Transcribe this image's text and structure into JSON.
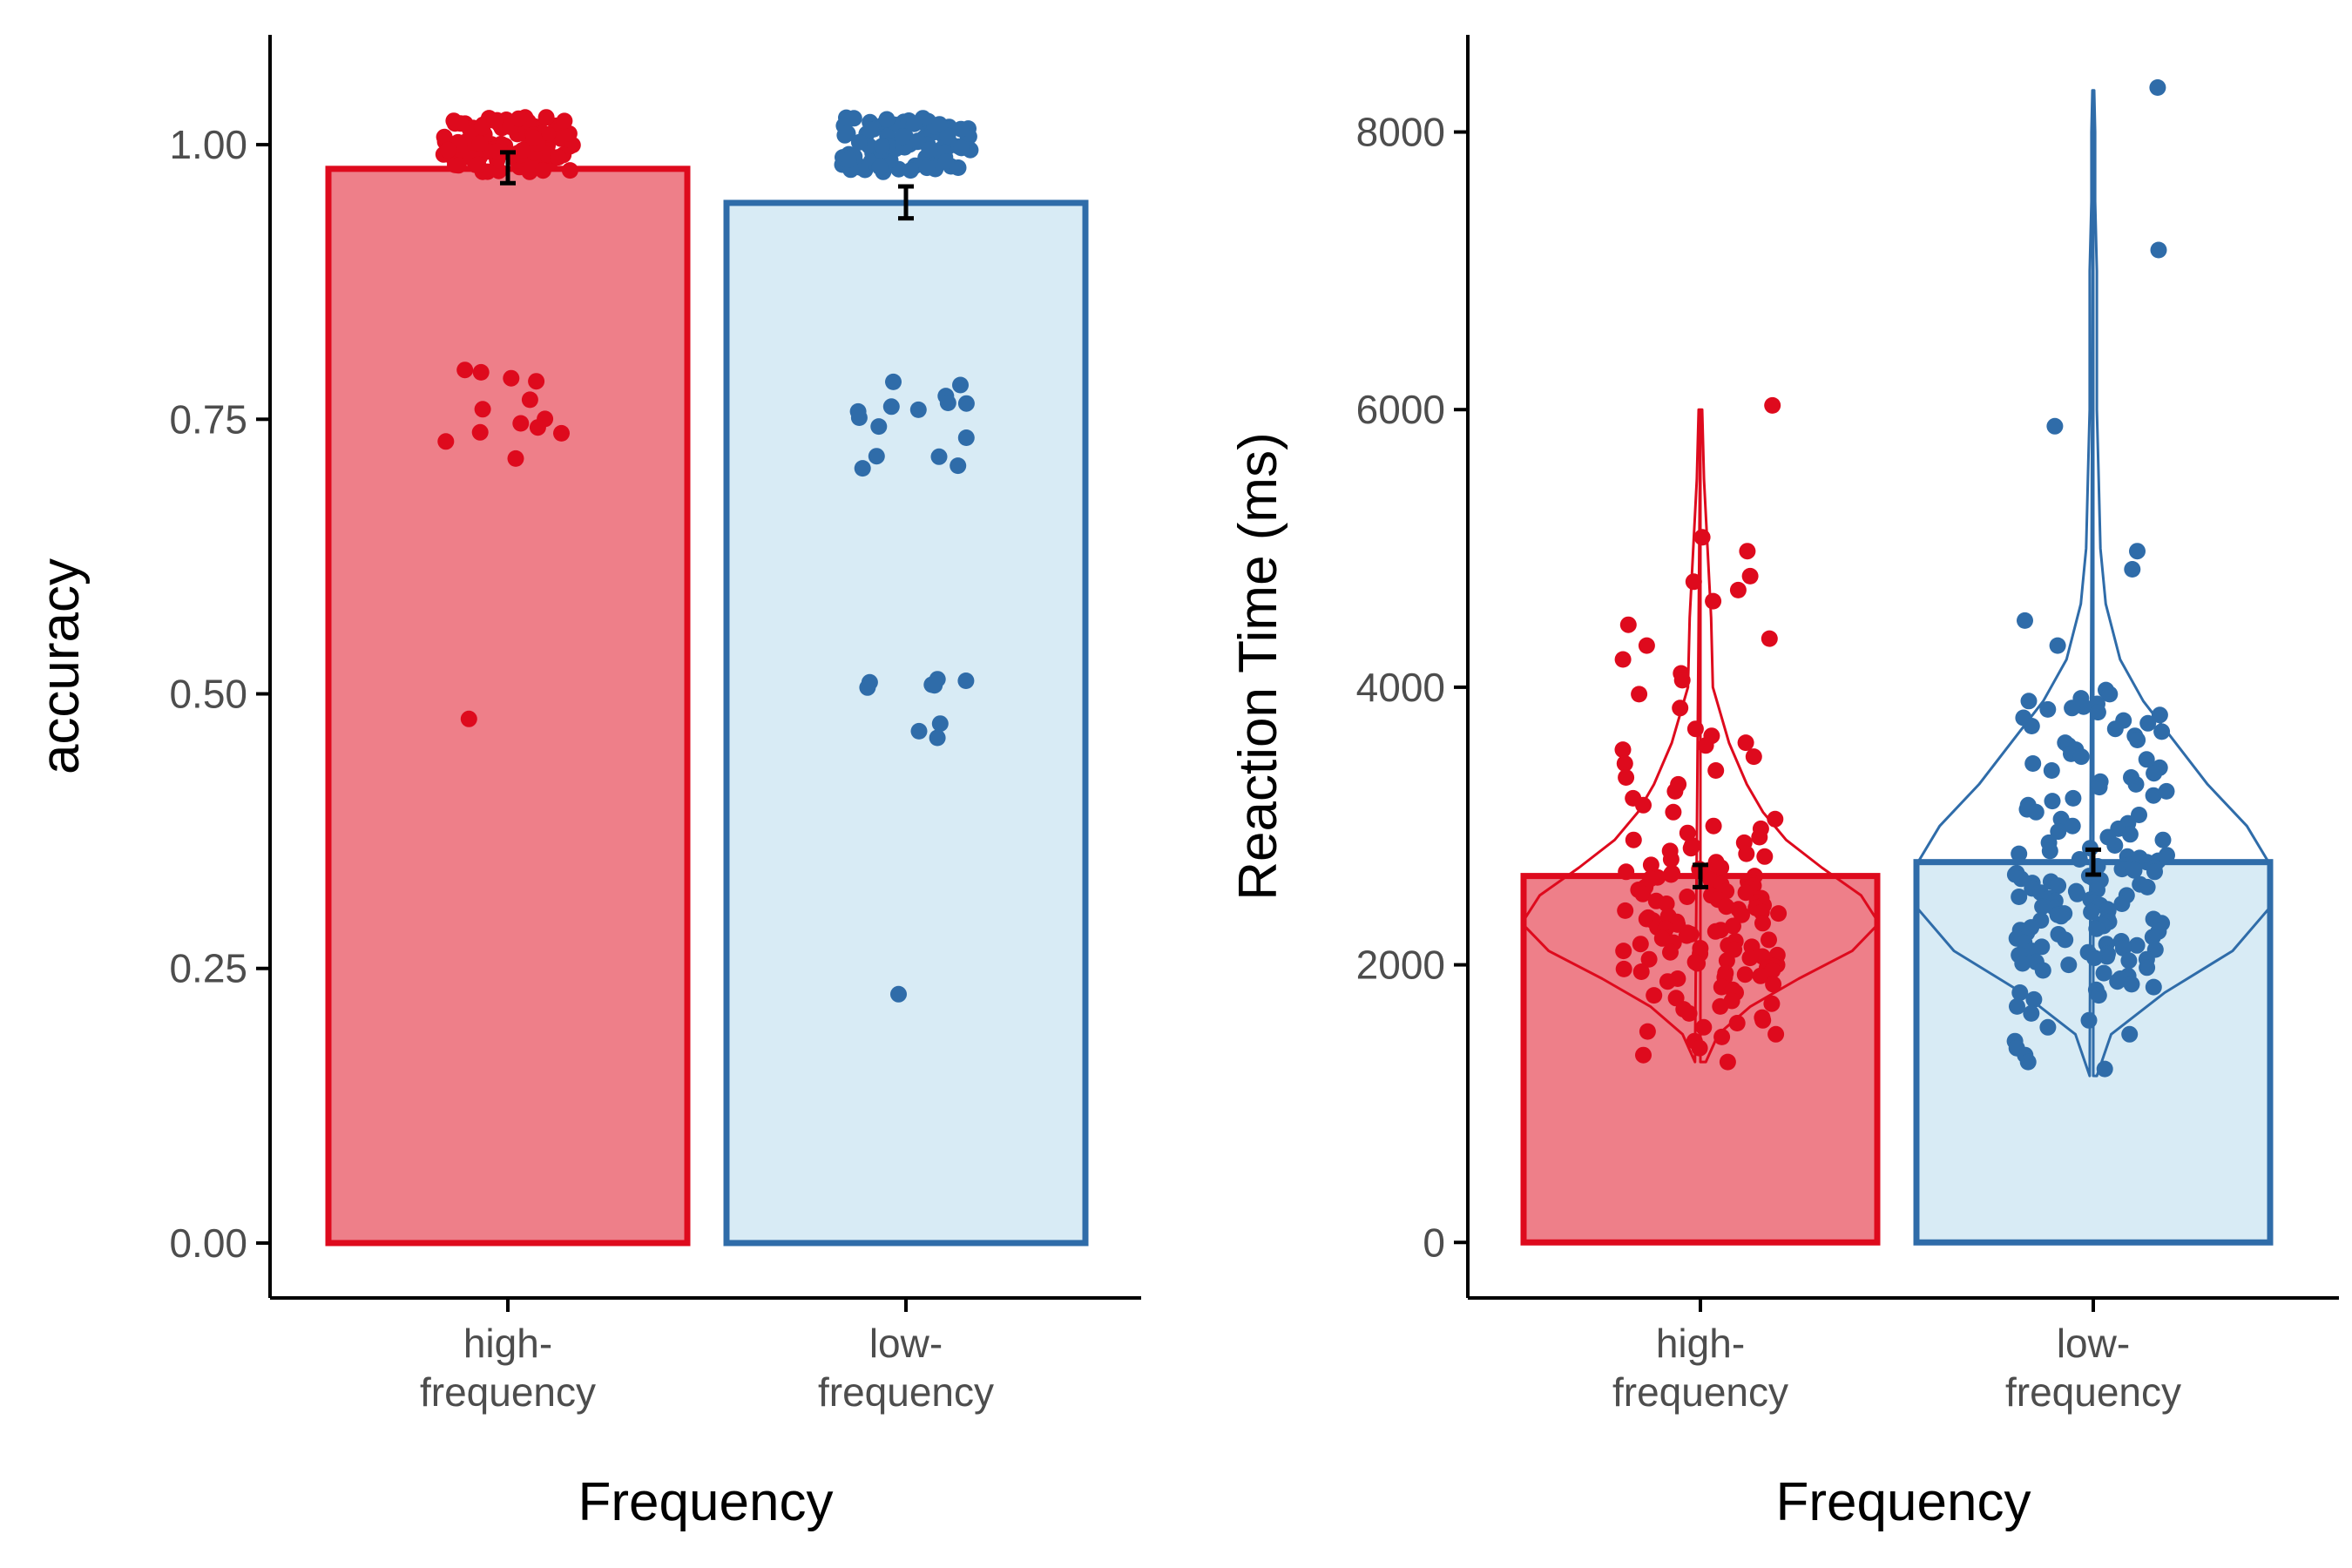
{
  "chart_data": [
    {
      "type": "bar",
      "overlay": "jittered points with standard-error bars",
      "categories": [
        "high-\nfrequency",
        "low-\nfrequency"
      ],
      "xlabel": "Frequency",
      "ylabel": "accuracy",
      "ylim": [
        -0.05,
        1.1
      ],
      "yticks": [
        "0.00",
        "0.25",
        "0.50",
        "0.75",
        "1.00"
      ],
      "ytick_values": [
        0,
        0.25,
        0.5,
        0.75,
        1.0
      ],
      "values": [
        0.978,
        0.947
      ],
      "error": [
        [
          0.965,
          0.993
        ],
        [
          0.933,
          0.962
        ]
      ],
      "colors": {
        "fill": [
          "#ee7f89",
          "#d8ebf5"
        ],
        "stroke": [
          "#de0a1d",
          "#2f6ca9"
        ]
      },
      "points": [
        {
          "category": 0,
          "y": [
            1.0,
            1.0,
            1.0,
            1.0,
            1.0,
            1.0,
            1.0,
            1.0,
            1.0,
            1.0,
            1.0,
            1.0,
            1.0,
            1.0,
            1.0,
            1.0,
            1.0,
            1.0,
            1.0,
            1.0,
            1.0,
            1.0,
            1.0,
            1.0,
            1.0,
            1.0,
            1.0,
            1.0,
            1.0,
            1.0,
            1.0,
            1.0,
            1.0,
            1.0,
            1.0,
            1.0,
            1.0,
            1.0,
            1.0,
            1.0,
            1.0,
            1.0,
            1.0,
            1.0,
            1.0,
            1.0,
            1.0,
            1.0,
            1.0,
            1.0,
            1.0,
            1.0,
            1.0,
            1.0,
            1.0,
            1.0,
            1.0,
            1.0,
            1.0,
            1.0,
            1.0,
            1.0,
            1.0,
            1.0,
            1.0,
            1.0,
            1.0,
            1.0,
            1.0,
            1.0,
            1.0,
            1.0,
            1.0,
            1.0,
            1.0,
            1.0,
            1.0,
            1.0,
            1.0,
            1.0,
            1.0,
            1.0,
            1.0,
            1.0,
            1.0,
            1.0,
            1.0,
            1.0,
            1.0,
            1.0,
            1.0,
            1.0,
            1.0,
            1.0,
            1.0,
            1.0,
            1.0,
            1.0,
            1.0,
            1.0,
            1.0,
            1.0,
            1.0,
            1.0,
            1.0,
            1.0,
            1.0,
            1.0,
            1.0,
            1.0,
            0.775,
            0.77,
            0.76,
            0.752,
            0.748,
            0.745,
            0.74,
            0.735,
            0.725,
            0.722,
            0.722,
            0.72,
            0.768,
            0.496
          ]
        },
        {
          "category": 1,
          "y": [
            1.0,
            1.0,
            1.0,
            1.0,
            1.0,
            1.0,
            1.0,
            1.0,
            1.0,
            1.0,
            1.0,
            1.0,
            1.0,
            1.0,
            1.0,
            1.0,
            1.0,
            1.0,
            1.0,
            1.0,
            1.0,
            1.0,
            1.0,
            1.0,
            1.0,
            1.0,
            1.0,
            1.0,
            1.0,
            1.0,
            1.0,
            1.0,
            1.0,
            1.0,
            1.0,
            1.0,
            1.0,
            1.0,
            1.0,
            1.0,
            1.0,
            1.0,
            1.0,
            1.0,
            1.0,
            1.0,
            1.0,
            1.0,
            1.0,
            1.0,
            1.0,
            1.0,
            1.0,
            1.0,
            1.0,
            1.0,
            1.0,
            1.0,
            1.0,
            1.0,
            1.0,
            1.0,
            1.0,
            1.0,
            1.0,
            1.0,
            1.0,
            1.0,
            1.0,
            1.0,
            1.0,
            1.0,
            1.0,
            1.0,
            1.0,
            1.0,
            1.0,
            1.0,
            1.0,
            1.0,
            1.0,
            1.0,
            1.0,
            1.0,
            1.0,
            1.0,
            1.0,
            1.0,
            1.0,
            1.0,
            0.772,
            0.768,
            0.765,
            0.765,
            0.762,
            0.758,
            0.752,
            0.748,
            0.745,
            0.74,
            0.738,
            0.735,
            0.73,
            0.726,
            0.722,
            0.518,
            0.514,
            0.511,
            0.509,
            0.505,
            0.487,
            0.482,
            0.48,
            0.478,
            0.25
          ]
        }
      ]
    },
    {
      "type": "bar",
      "overlay": "violin, jittered points and standard-error bars",
      "categories": [
        "high-\nfrequency",
        "low-\nfrequency"
      ],
      "xlabel": "Frequency",
      "ylabel": "Reaction Time (ms)",
      "ylim": [
        -400,
        8700
      ],
      "yticks": [
        "0",
        "2000",
        "4000",
        "6000",
        "8000"
      ],
      "ytick_values": [
        0,
        2000,
        4000,
        6000,
        8000
      ],
      "values": [
        2640,
        2740
      ],
      "error": [
        [
          2560,
          2720
        ],
        [
          2650,
          2830
        ]
      ],
      "colors": {
        "fill": [
          "#ee7f89",
          "#d8ebf5"
        ],
        "stroke": [
          "#de0a1d",
          "#2f6ca9"
        ]
      },
      "violins": [
        {
          "category": 0,
          "y": [
            1300,
            1500,
            1700,
            1900,
            2100,
            2300,
            2500,
            2700,
            2900,
            3100,
            3300,
            3600,
            4000,
            4500,
            5000,
            5500,
            6000
          ],
          "density": [
            0.03,
            0.1,
            0.28,
            0.55,
            0.85,
            1.0,
            0.9,
            0.68,
            0.48,
            0.35,
            0.26,
            0.16,
            0.07,
            0.06,
            0.04,
            0.02,
            0.01
          ]
        },
        {
          "category": 1,
          "y": [
            1200,
            1500,
            1800,
            2100,
            2400,
            2700,
            3000,
            3300,
            3600,
            3900,
            4200,
            4600,
            5000,
            5500,
            6000,
            6500,
            7000,
            7500,
            8000,
            8300
          ],
          "density": [
            0.02,
            0.1,
            0.4,
            0.78,
            0.98,
            1.0,
            0.86,
            0.64,
            0.46,
            0.28,
            0.15,
            0.07,
            0.04,
            0.03,
            0.02,
            0.02,
            0.02,
            0.01,
            0.01,
            0.005
          ]
        }
      ],
      "points": [
        {
          "category": 0,
          "y": [
            6030,
            5080,
            4980,
            4800,
            4760,
            4700,
            4620,
            4450,
            4350,
            4300,
            4200,
            4100,
            4050,
            3950,
            3850,
            3700,
            3650,
            3600,
            3580,
            3550,
            3500,
            3450,
            3400,
            3350,
            3300,
            3250,
            3200,
            3150,
            3100,
            3050,
            3000,
            2980,
            2950,
            2920,
            2900,
            2880,
            2860,
            2840,
            2820,
            2800,
            2780,
            2760,
            2740,
            2720,
            2700,
            2690,
            2680,
            2670,
            2660,
            2650,
            2640,
            2630,
            2620,
            2610,
            2600,
            2590,
            2580,
            2570,
            2560,
            2550,
            2540,
            2530,
            2520,
            2510,
            2500,
            2490,
            2480,
            2470,
            2460,
            2450,
            2440,
            2430,
            2420,
            2410,
            2400,
            2390,
            2380,
            2370,
            2360,
            2350,
            2340,
            2330,
            2320,
            2310,
            2300,
            2290,
            2280,
            2270,
            2260,
            2250,
            2240,
            2230,
            2220,
            2210,
            2200,
            2190,
            2180,
            2170,
            2160,
            2150,
            2140,
            2130,
            2120,
            2110,
            2100,
            2090,
            2080,
            2070,
            2060,
            2050,
            2040,
            2030,
            2020,
            2010,
            2000,
            1990,
            1980,
            1970,
            1960,
            1950,
            1940,
            1930,
            1920,
            1910,
            1900,
            1880,
            1860,
            1840,
            1820,
            1800,
            1780,
            1760,
            1740,
            1720,
            1700,
            1680,
            1650,
            1620,
            1600,
            1580,
            1550,
            1520,
            1500,
            1480,
            1450,
            1400,
            1350,
            1300
          ]
        },
        {
          "category": 1,
          "y": [
            8320,
            7150,
            5880,
            4980,
            4850,
            4480,
            4300,
            3980,
            3950,
            3920,
            3900,
            3880,
            3860,
            3850,
            3840,
            3820,
            3800,
            3780,
            3760,
            3740,
            3720,
            3700,
            3680,
            3650,
            3620,
            3600,
            3580,
            3550,
            3520,
            3500,
            3480,
            3450,
            3420,
            3400,
            3380,
            3350,
            3320,
            3300,
            3280,
            3250,
            3220,
            3200,
            3180,
            3150,
            3120,
            3100,
            3080,
            3050,
            3020,
            3000,
            2980,
            2960,
            2940,
            2920,
            2900,
            2880,
            2860,
            2840,
            2820,
            2800,
            2790,
            2780,
            2770,
            2760,
            2750,
            2740,
            2730,
            2720,
            2710,
            2700,
            2690,
            2680,
            2670,
            2660,
            2650,
            2640,
            2630,
            2620,
            2610,
            2600,
            2590,
            2580,
            2570,
            2560,
            2550,
            2540,
            2530,
            2520,
            2510,
            2500,
            2490,
            2480,
            2470,
            2460,
            2450,
            2440,
            2430,
            2420,
            2410,
            2400,
            2390,
            2380,
            2370,
            2360,
            2350,
            2340,
            2330,
            2320,
            2310,
            2300,
            2290,
            2280,
            2270,
            2260,
            2250,
            2240,
            2230,
            2220,
            2210,
            2200,
            2190,
            2180,
            2170,
            2160,
            2150,
            2140,
            2130,
            2120,
            2110,
            2100,
            2090,
            2080,
            2070,
            2060,
            2050,
            2040,
            2030,
            2020,
            2010,
            2000,
            1980,
            1960,
            1940,
            1920,
            1900,
            1880,
            1860,
            1840,
            1820,
            1800,
            1780,
            1750,
            1700,
            1650,
            1600,
            1550,
            1500,
            1450,
            1400,
            1350,
            1300,
            1250
          ]
        }
      ]
    }
  ]
}
